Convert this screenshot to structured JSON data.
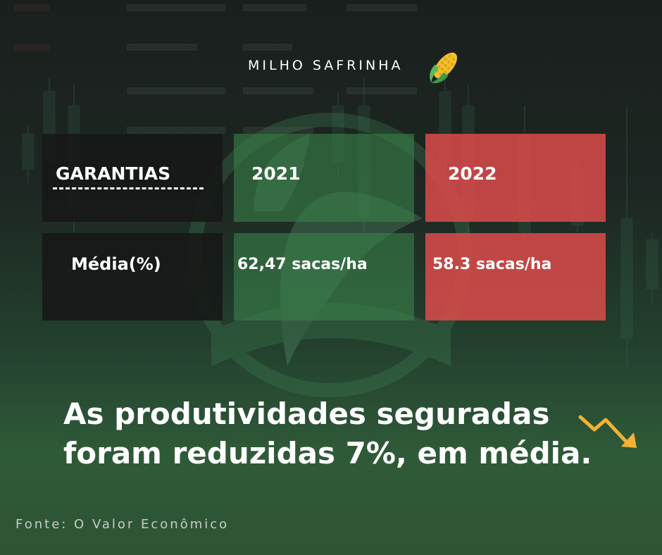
{
  "header": {
    "title": "MILHO SAFRINHA",
    "icon": "corn-icon"
  },
  "table": {
    "header_row": {
      "label": "GARANTIAS",
      "year_a": "2021",
      "year_b": "2022"
    },
    "data_row": {
      "label": "Média(%)",
      "value_a": "62,47 sacas/ha",
      "value_b": "58.3 sacas/ha"
    }
  },
  "headline": {
    "line1": "As produtividades seguradas",
    "line2": "foram reduzidas 7%, em média.",
    "icon": "trend-down-icon"
  },
  "source": "Fonte: O Valor Econômico",
  "colors": {
    "green_cell": "#388048",
    "red_cell": "#d64a4a",
    "dark_cell": "#161817",
    "arrow": "#f2b233"
  }
}
